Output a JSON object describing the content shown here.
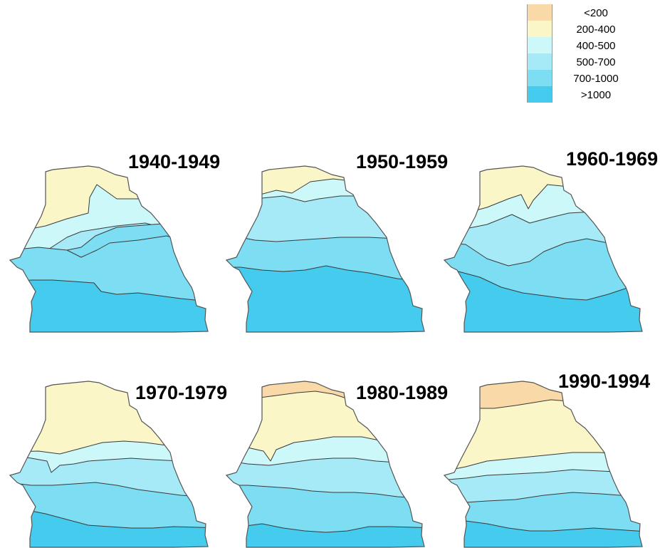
{
  "legend": {
    "items": [
      {
        "label": "<200",
        "color": "#FAD9A8"
      },
      {
        "label": "200-400",
        "color": "#FAF6C8"
      },
      {
        "label": "400-500",
        "color": "#CDF8FA"
      },
      {
        "label": "500-700",
        "color": "#A6EAF8"
      },
      {
        "label": "700-1000",
        "color": "#7CDDF3"
      },
      {
        "label": ">1000",
        "color": "#44CBEE"
      }
    ]
  },
  "maps": [
    {
      "period": "1940-1949",
      "zones": [
        "200-400",
        "400-500",
        "500-700",
        "700-1000",
        ">1000"
      ]
    },
    {
      "period": "1950-1959",
      "zones": [
        "200-400",
        "400-500",
        "500-700",
        "700-1000",
        ">1000"
      ]
    },
    {
      "period": "1960-1969",
      "zones": [
        "200-400",
        "400-500",
        "500-700",
        "700-1000",
        ">1000"
      ]
    },
    {
      "period": "1970-1979",
      "zones": [
        "200-400",
        "400-500",
        "500-700",
        "700-1000",
        ">1000"
      ]
    },
    {
      "period": "1980-1989",
      "zones": [
        "<200",
        "200-400",
        "400-500",
        "500-700",
        "700-1000",
        ">1000"
      ]
    },
    {
      "period": "1990-1994",
      "zones": [
        "<200",
        "200-400",
        "400-500",
        "500-700",
        "700-1000",
        ">1000"
      ]
    }
  ]
}
